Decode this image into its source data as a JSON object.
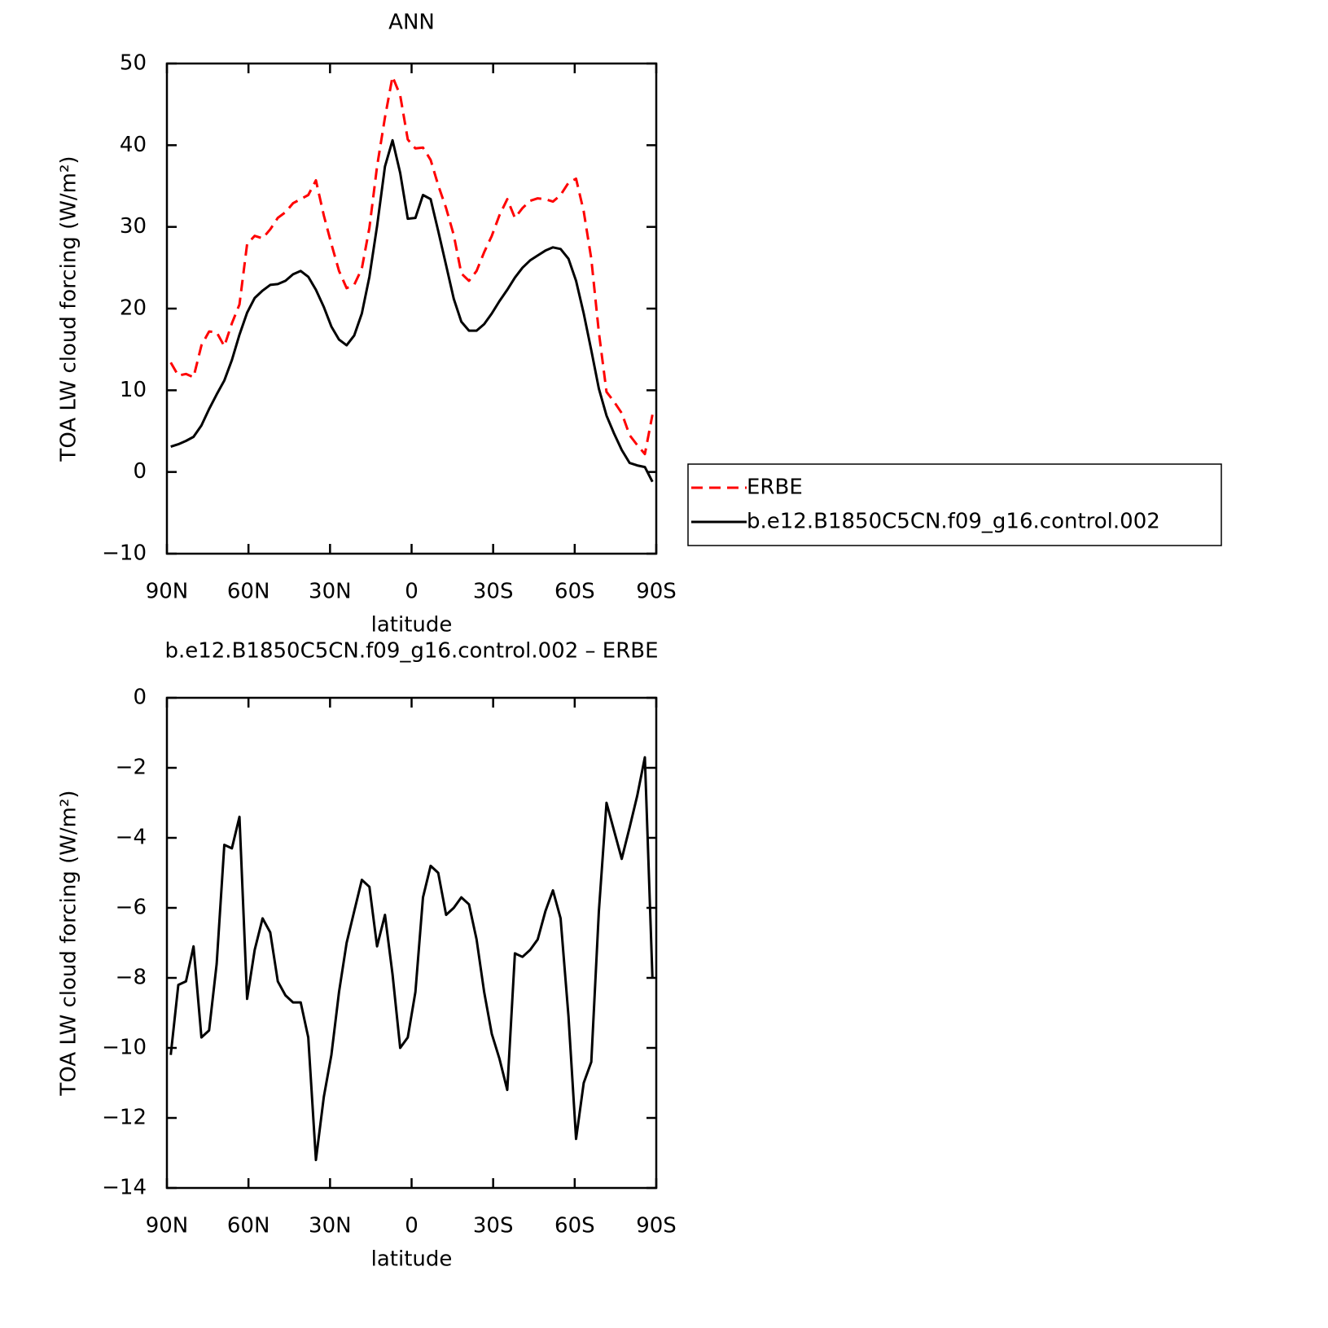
{
  "chart_data": [
    {
      "type": "line",
      "title": "ANN",
      "xlabel": "latitude",
      "ylabel": "TOA LW cloud forcing (W/m²)",
      "x": [
        88.6,
        85.8,
        83.0,
        80.2,
        77.3,
        74.5,
        71.7,
        68.9,
        66.1,
        63.3,
        60.5,
        57.7,
        54.8,
        52.0,
        49.2,
        46.4,
        43.6,
        40.8,
        38.0,
        35.2,
        32.3,
        29.5,
        26.7,
        23.9,
        21.1,
        18.3,
        15.5,
        12.7,
        9.8,
        7.0,
        4.2,
        1.4,
        -1.4,
        -4.2,
        -7.0,
        -9.8,
        -12.7,
        -15.5,
        -18.3,
        -21.1,
        -23.9,
        -26.7,
        -29.5,
        -32.3,
        -35.2,
        -38.0,
        -40.8,
        -43.6,
        -46.4,
        -49.2,
        -52.0,
        -54.8,
        -57.7,
        -60.5,
        -63.3,
        -66.1,
        -68.9,
        -71.7,
        -74.5,
        -77.3,
        -80.2,
        -83.0,
        -85.8,
        -88.6
      ],
      "xlim": [
        90,
        -90
      ],
      "xticks": [
        {
          "value": 90,
          "label": "90N"
        },
        {
          "value": 60,
          "label": "60N"
        },
        {
          "value": 30,
          "label": "30N"
        },
        0,
        {
          "value": -30,
          "label": "30S"
        },
        {
          "value": -60,
          "label": "60S"
        },
        {
          "value": -90,
          "label": "90S"
        }
      ],
      "ylim": [
        -10,
        50
      ],
      "yticks": [
        {
          "value": -10,
          "label": "−10"
        },
        0,
        10,
        20,
        30,
        40,
        50
      ],
      "legend": "right",
      "series": [
        {
          "name": "ERBE",
          "color": "#ff0000",
          "linestyle": "dashed",
          "values": [
            13.4,
            11.8,
            12.0,
            11.6,
            15.5,
            17.2,
            17.1,
            15.4,
            18.2,
            20.5,
            27.9,
            28.9,
            28.6,
            29.7,
            31.1,
            31.8,
            32.9,
            33.4,
            33.9,
            35.7,
            31.4,
            27.9,
            24.6,
            22.5,
            22.9,
            24.9,
            29.9,
            37.4,
            43.4,
            48.4,
            46.1,
            40.7,
            39.6,
            39.7,
            38.2,
            35.1,
            32.3,
            29.0,
            24.3,
            23.4,
            24.6,
            26.9,
            28.9,
            31.4,
            33.4,
            31.1,
            32.3,
            33.2,
            33.5,
            33.4,
            33.1,
            33.9,
            35.4,
            35.9,
            31.9,
            26.1,
            17.1,
            9.8,
            8.6,
            7.2,
            4.5,
            3.3,
            2.2,
            7.0
          ]
        },
        {
          "name": "b.e12.B1850C5CN.f09_g16.control.002",
          "color": "#000000",
          "linestyle": "solid",
          "values": [
            3.1,
            3.4,
            3.8,
            4.3,
            5.7,
            7.7,
            9.5,
            11.2,
            13.7,
            16.8,
            19.5,
            21.3,
            22.2,
            22.9,
            23.0,
            23.4,
            24.2,
            24.6,
            23.9,
            22.3,
            20.2,
            17.8,
            16.2,
            15.5,
            16.7,
            19.4,
            23.9,
            30.1,
            37.4,
            40.6,
            36.6,
            31.0,
            31.1,
            33.9,
            33.4,
            29.5,
            25.3,
            21.2,
            18.4,
            17.3,
            17.3,
            18.1,
            19.4,
            20.9,
            22.3,
            23.8,
            25.0,
            25.9,
            26.5,
            27.1,
            27.5,
            27.3,
            26.1,
            23.4,
            19.4,
            14.9,
            10.2,
            6.9,
            4.7,
            2.7,
            1.1,
            0.8,
            0.6,
            -1.2
          ]
        }
      ]
    },
    {
      "type": "line",
      "title": "b.e12.B1850C5CN.f09_g16.control.002 – ERBE",
      "xlabel": "latitude",
      "ylabel": "TOA LW cloud forcing (W/m²)",
      "x": [
        88.6,
        85.8,
        83.0,
        80.2,
        77.3,
        74.5,
        71.7,
        68.9,
        66.1,
        63.3,
        60.5,
        57.7,
        54.8,
        52.0,
        49.2,
        46.4,
        43.6,
        40.8,
        38.0,
        35.2,
        32.3,
        29.5,
        26.7,
        23.9,
        21.1,
        18.3,
        15.5,
        12.7,
        9.8,
        7.0,
        4.2,
        1.4,
        -1.4,
        -4.2,
        -7.0,
        -9.8,
        -12.7,
        -15.5,
        -18.3,
        -21.1,
        -23.9,
        -26.7,
        -29.5,
        -32.3,
        -35.2,
        -38.0,
        -40.8,
        -43.6,
        -46.4,
        -49.2,
        -52.0,
        -54.8,
        -57.7,
        -60.5,
        -63.3,
        -66.1,
        -68.9,
        -71.7,
        -74.5,
        -77.3,
        -80.2,
        -83.0,
        -85.8,
        -88.6
      ],
      "xlim": [
        90,
        -90
      ],
      "xticks": [
        {
          "value": 90,
          "label": "90N"
        },
        {
          "value": 60,
          "label": "60N"
        },
        {
          "value": 30,
          "label": "30N"
        },
        0,
        {
          "value": -30,
          "label": "30S"
        },
        {
          "value": -60,
          "label": "60S"
        },
        {
          "value": -90,
          "label": "90S"
        }
      ],
      "ylim": [
        -14,
        0
      ],
      "yticks": [
        {
          "value": -14,
          "label": "−14"
        },
        {
          "value": -12,
          "label": "−12"
        },
        {
          "value": -10,
          "label": "−10"
        },
        {
          "value": -8,
          "label": "−8"
        },
        {
          "value": -6,
          "label": "−6"
        },
        {
          "value": -4,
          "label": "−4"
        },
        {
          "value": -2,
          "label": "−2"
        },
        0
      ],
      "series": [
        {
          "color": "#000000",
          "linestyle": "solid",
          "values": [
            -10.2,
            -8.2,
            -8.1,
            -7.1,
            -9.7,
            -9.5,
            -7.6,
            -4.2,
            -4.3,
            -3.4,
            -8.6,
            -7.2,
            -6.3,
            -6.7,
            -8.1,
            -8.5,
            -8.7,
            -8.7,
            -9.7,
            -13.2,
            -11.4,
            -10.2,
            -8.4,
            -7.0,
            -6.1,
            -5.2,
            -5.4,
            -7.1,
            -6.2,
            -7.9,
            -10.0,
            -9.7,
            -8.4,
            -5.7,
            -4.8,
            -5.0,
            -6.2,
            -6.0,
            -5.7,
            -5.9,
            -6.9,
            -8.4,
            -9.6,
            -10.3,
            -11.2,
            -7.3,
            -7.4,
            -7.2,
            -6.9,
            -6.1,
            -5.5,
            -6.3,
            -9.1,
            -12.6,
            -11.0,
            -10.4,
            -6.1,
            -3.0,
            -3.8,
            -4.6,
            -3.7,
            -2.8,
            -1.7,
            -8.0
          ]
        }
      ]
    }
  ]
}
